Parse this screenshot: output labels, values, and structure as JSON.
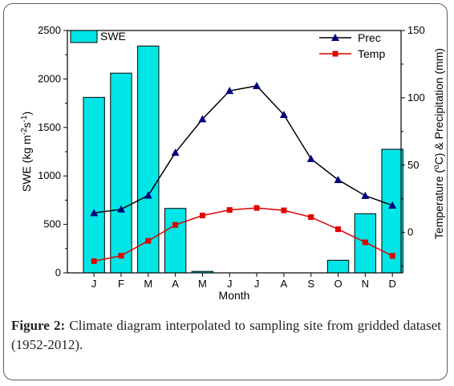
{
  "chart_data": {
    "type": "bar+line",
    "categories": [
      "J",
      "F",
      "M",
      "A",
      "M",
      "J",
      "J",
      "A",
      "S",
      "O",
      "N",
      "D"
    ],
    "xlabel": "Month",
    "left_axis": {
      "label_prefix": "SWE (kg m",
      "label_sup1": "-2",
      "label_mid": "s",
      "label_sup2": "-1",
      "label_suffix": ")",
      "range": [
        0,
        2500
      ],
      "ticks": [
        "0",
        "500",
        "1000",
        "1500",
        "2000",
        "2500"
      ]
    },
    "right_axis": {
      "label_prefix": "Temperature (",
      "label_sup": "o",
      "label_suffix": "C) & Precipitation (mm)",
      "range": [
        -30,
        150
      ],
      "ticks": [
        "0",
        "50",
        "100",
        "150"
      ]
    },
    "bars": {
      "name": "SWE",
      "color": "#00e5e5",
      "values": [
        1810,
        2060,
        2340,
        665,
        15,
        0,
        0,
        0,
        0,
        130,
        610,
        1275
      ]
    },
    "lines": [
      {
        "name": "Prec",
        "color": "#000080",
        "values": [
          14.5,
          17.2,
          27.5,
          59.3,
          84.2,
          105.2,
          108.9,
          87.4,
          54.7,
          39.1,
          27.3,
          20.1
        ]
      },
      {
        "name": "Temp",
        "color": "#e00000",
        "values": [
          -21.3,
          -17.3,
          -6.2,
          5.6,
          12.6,
          16.7,
          18.2,
          16.4,
          11.4,
          2.4,
          -7.3,
          -17.4
        ]
      }
    ],
    "legend": {
      "bars_position": "top-left",
      "lines_position": "top-right"
    }
  },
  "caption": {
    "label": "Figure 2:",
    "text": " Climate diagram interpolated to sampling site from gridded dataset (1952-2012)."
  }
}
